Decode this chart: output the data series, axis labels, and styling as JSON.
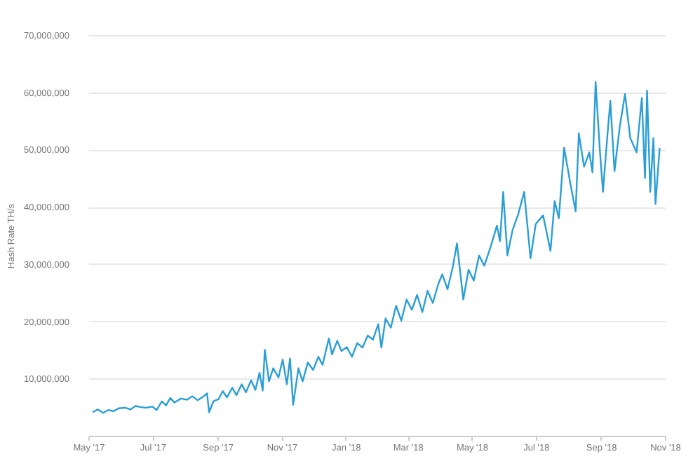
{
  "chart_data": {
    "type": "line",
    "ylabel": "Hash Rate TH/s",
    "color": "#2a9fd6",
    "grid": "y",
    "xlim": [
      "2017-05-01",
      "2018-11-01"
    ],
    "ylim": [
      0,
      70000000
    ],
    "yticks": [
      {
        "value": 10000000,
        "label": "10,000,000"
      },
      {
        "value": 20000000,
        "label": "20,000,000"
      },
      {
        "value": 30000000,
        "label": "30,000,000"
      },
      {
        "value": 40000000,
        "label": "40,000,000"
      },
      {
        "value": 50000000,
        "label": "50,000,000"
      },
      {
        "value": 60000000,
        "label": "60,000,000"
      },
      {
        "value": 70000000,
        "label": "70,000,000"
      }
    ],
    "xticks": [
      {
        "value": "2017-05-01",
        "label": "May '17"
      },
      {
        "value": "2017-07-01",
        "label": "Jul '17"
      },
      {
        "value": "2017-09-01",
        "label": "Sep '17"
      },
      {
        "value": "2017-11-01",
        "label": "Nov '17"
      },
      {
        "value": "2018-01-01",
        "label": "Jan '18"
      },
      {
        "value": "2018-03-01",
        "label": "Mar '18"
      },
      {
        "value": "2018-05-01",
        "label": "May '18"
      },
      {
        "value": "2018-07-01",
        "label": "Jul '18"
      },
      {
        "value": "2018-09-01",
        "label": "Sep '18"
      },
      {
        "value": "2018-11-01",
        "label": "Nov '18"
      }
    ],
    "x": [
      "2017-05-05",
      "2017-05-10",
      "2017-05-15",
      "2017-05-20",
      "2017-05-25",
      "2017-05-30",
      "2017-06-05",
      "2017-06-10",
      "2017-06-15",
      "2017-06-20",
      "2017-06-25",
      "2017-07-01",
      "2017-07-05",
      "2017-07-10",
      "2017-07-14",
      "2017-07-18",
      "2017-07-22",
      "2017-07-28",
      "2017-08-03",
      "2017-08-08",
      "2017-08-13",
      "2017-08-18",
      "2017-08-22",
      "2017-08-24",
      "2017-08-28",
      "2017-09-02",
      "2017-09-06",
      "2017-09-10",
      "2017-09-15",
      "2017-09-19",
      "2017-09-24",
      "2017-09-28",
      "2017-10-03",
      "2017-10-07",
      "2017-10-11",
      "2017-10-14",
      "2017-10-16",
      "2017-10-20",
      "2017-10-24",
      "2017-10-29",
      "2017-11-02",
      "2017-11-06",
      "2017-11-09",
      "2017-11-12",
      "2017-11-17",
      "2017-11-21",
      "2017-11-26",
      "2017-12-01",
      "2017-12-06",
      "2017-12-10",
      "2017-12-16",
      "2017-12-19",
      "2017-12-24",
      "2017-12-28",
      "2018-01-02",
      "2018-01-07",
      "2018-01-12",
      "2018-01-17",
      "2018-01-22",
      "2018-01-27",
      "2018-02-01",
      "2018-02-04",
      "2018-02-08",
      "2018-02-13",
      "2018-02-18",
      "2018-02-23",
      "2018-02-28",
      "2018-03-05",
      "2018-03-10",
      "2018-03-15",
      "2018-03-20",
      "2018-03-25",
      "2018-03-30",
      "2018-04-03",
      "2018-04-08",
      "2018-04-13",
      "2018-04-17",
      "2018-04-23",
      "2018-04-28",
      "2018-05-03",
      "2018-05-08",
      "2018-05-13",
      "2018-05-19",
      "2018-05-25",
      "2018-05-28",
      "2018-05-31",
      "2018-06-04",
      "2018-06-09",
      "2018-06-14",
      "2018-06-20",
      "2018-06-26",
      "2018-07-01",
      "2018-07-08",
      "2018-07-15",
      "2018-07-19",
      "2018-07-23",
      "2018-07-28",
      "2018-08-03",
      "2018-08-08",
      "2018-08-11",
      "2018-08-16",
      "2018-08-21",
      "2018-08-24",
      "2018-08-27",
      "2018-08-31",
      "2018-09-03",
      "2018-09-07",
      "2018-09-10",
      "2018-09-14",
      "2018-09-19",
      "2018-09-24",
      "2018-09-29",
      "2018-10-05",
      "2018-10-10",
      "2018-10-13",
      "2018-10-15",
      "2018-10-18",
      "2018-10-21",
      "2018-10-23",
      "2018-10-27"
    ],
    "values": [
      4100000,
      4600000,
      4000000,
      4500000,
      4300000,
      4800000,
      4900000,
      4600000,
      5200000,
      5000000,
      4900000,
      5100000,
      4500000,
      6000000,
      5300000,
      6600000,
      5800000,
      6500000,
      6300000,
      6900000,
      6200000,
      6800000,
      7400000,
      4100000,
      6000000,
      6400000,
      7800000,
      6700000,
      8400000,
      7100000,
      9000000,
      7600000,
      9700000,
      8000000,
      11000000,
      7900000,
      15000000,
      9500000,
      11800000,
      10200000,
      13300000,
      9000000,
      13500000,
      5400000,
      11800000,
      9500000,
      12800000,
      11500000,
      13800000,
      12400000,
      17000000,
      14200000,
      16600000,
      14800000,
      15500000,
      13800000,
      16200000,
      15400000,
      17500000,
      16800000,
      19500000,
      15400000,
      20500000,
      18900000,
      22700000,
      20100000,
      23800000,
      22000000,
      24600000,
      21600000,
      25300000,
      23200000,
      26400000,
      28200000,
      25600000,
      29500000,
      33600000,
      23800000,
      29000000,
      27100000,
      31500000,
      29700000,
      33000000,
      36700000,
      34000000,
      42600000,
      31500000,
      36000000,
      38500000,
      42600000,
      31000000,
      37000000,
      38500000,
      32300000,
      41000000,
      38000000,
      50300000,
      44000000,
      39200000,
      52800000,
      47000000,
      49500000,
      46000000,
      61800000,
      50000000,
      42600000,
      52000000,
      58500000,
      46200000,
      54000000,
      59700000,
      52000000,
      49500000,
      59000000,
      45000000,
      60300000,
      42600000,
      52000000,
      40500000,
      50300000
    ]
  }
}
